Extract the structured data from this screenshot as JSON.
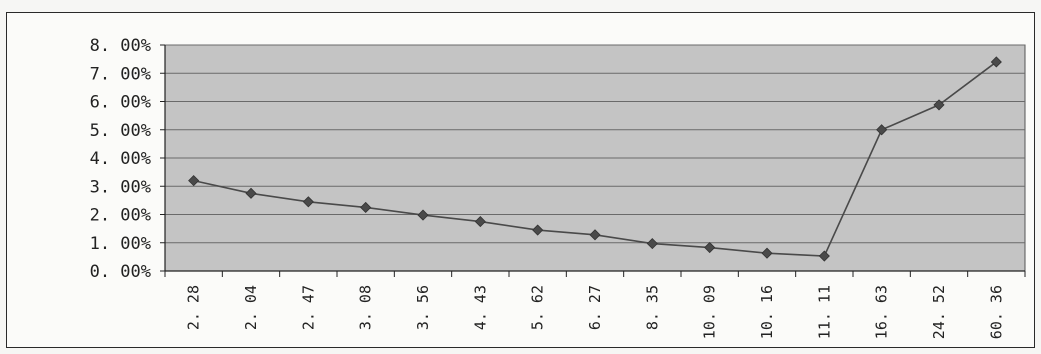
{
  "chart_data": {
    "type": "line",
    "title": "",
    "xlabel": "",
    "ylabel": "",
    "categories": [
      "2.28",
      "2.04",
      "2.47",
      "3.08",
      "3.56",
      "4.43",
      "5.62",
      "6.27",
      "8.35",
      "10.09",
      "10.16",
      "11.11",
      "16.63",
      "24.52",
      "60.36"
    ],
    "series": [
      {
        "values": [
          3.2,
          2.75,
          2.45,
          2.25,
          1.98,
          1.75,
          1.45,
          1.28,
          0.97,
          0.83,
          0.63,
          0.53,
          5.0,
          5.88,
          7.4
        ]
      }
    ],
    "ylim": [
      0,
      8
    ],
    "yticks": [
      0,
      1,
      2,
      3,
      4,
      5,
      6,
      7,
      8
    ],
    "ytick_labels": [
      "0. 00%",
      "1. 00%",
      "2. 00%",
      "3. 00%",
      "4. 00%",
      "5. 00%",
      "6. 00%",
      "7. 00%",
      "8. 00%"
    ],
    "xtick_labels": [
      "2. 28",
      "2. 04",
      "2. 47",
      "3. 08",
      "3. 56",
      "4. 43",
      "5. 62",
      "6. 27",
      "8. 35",
      "10. 09",
      "10. 16",
      "11. 11",
      "16. 63",
      "24. 52",
      "60. 36"
    ],
    "grid": true,
    "legend": "none",
    "colors": {
      "plot_background": "#c4c4c4",
      "gridline": "#6a6a6a",
      "line": "#4a4a4a",
      "marker": "#4a4a4a"
    }
  }
}
